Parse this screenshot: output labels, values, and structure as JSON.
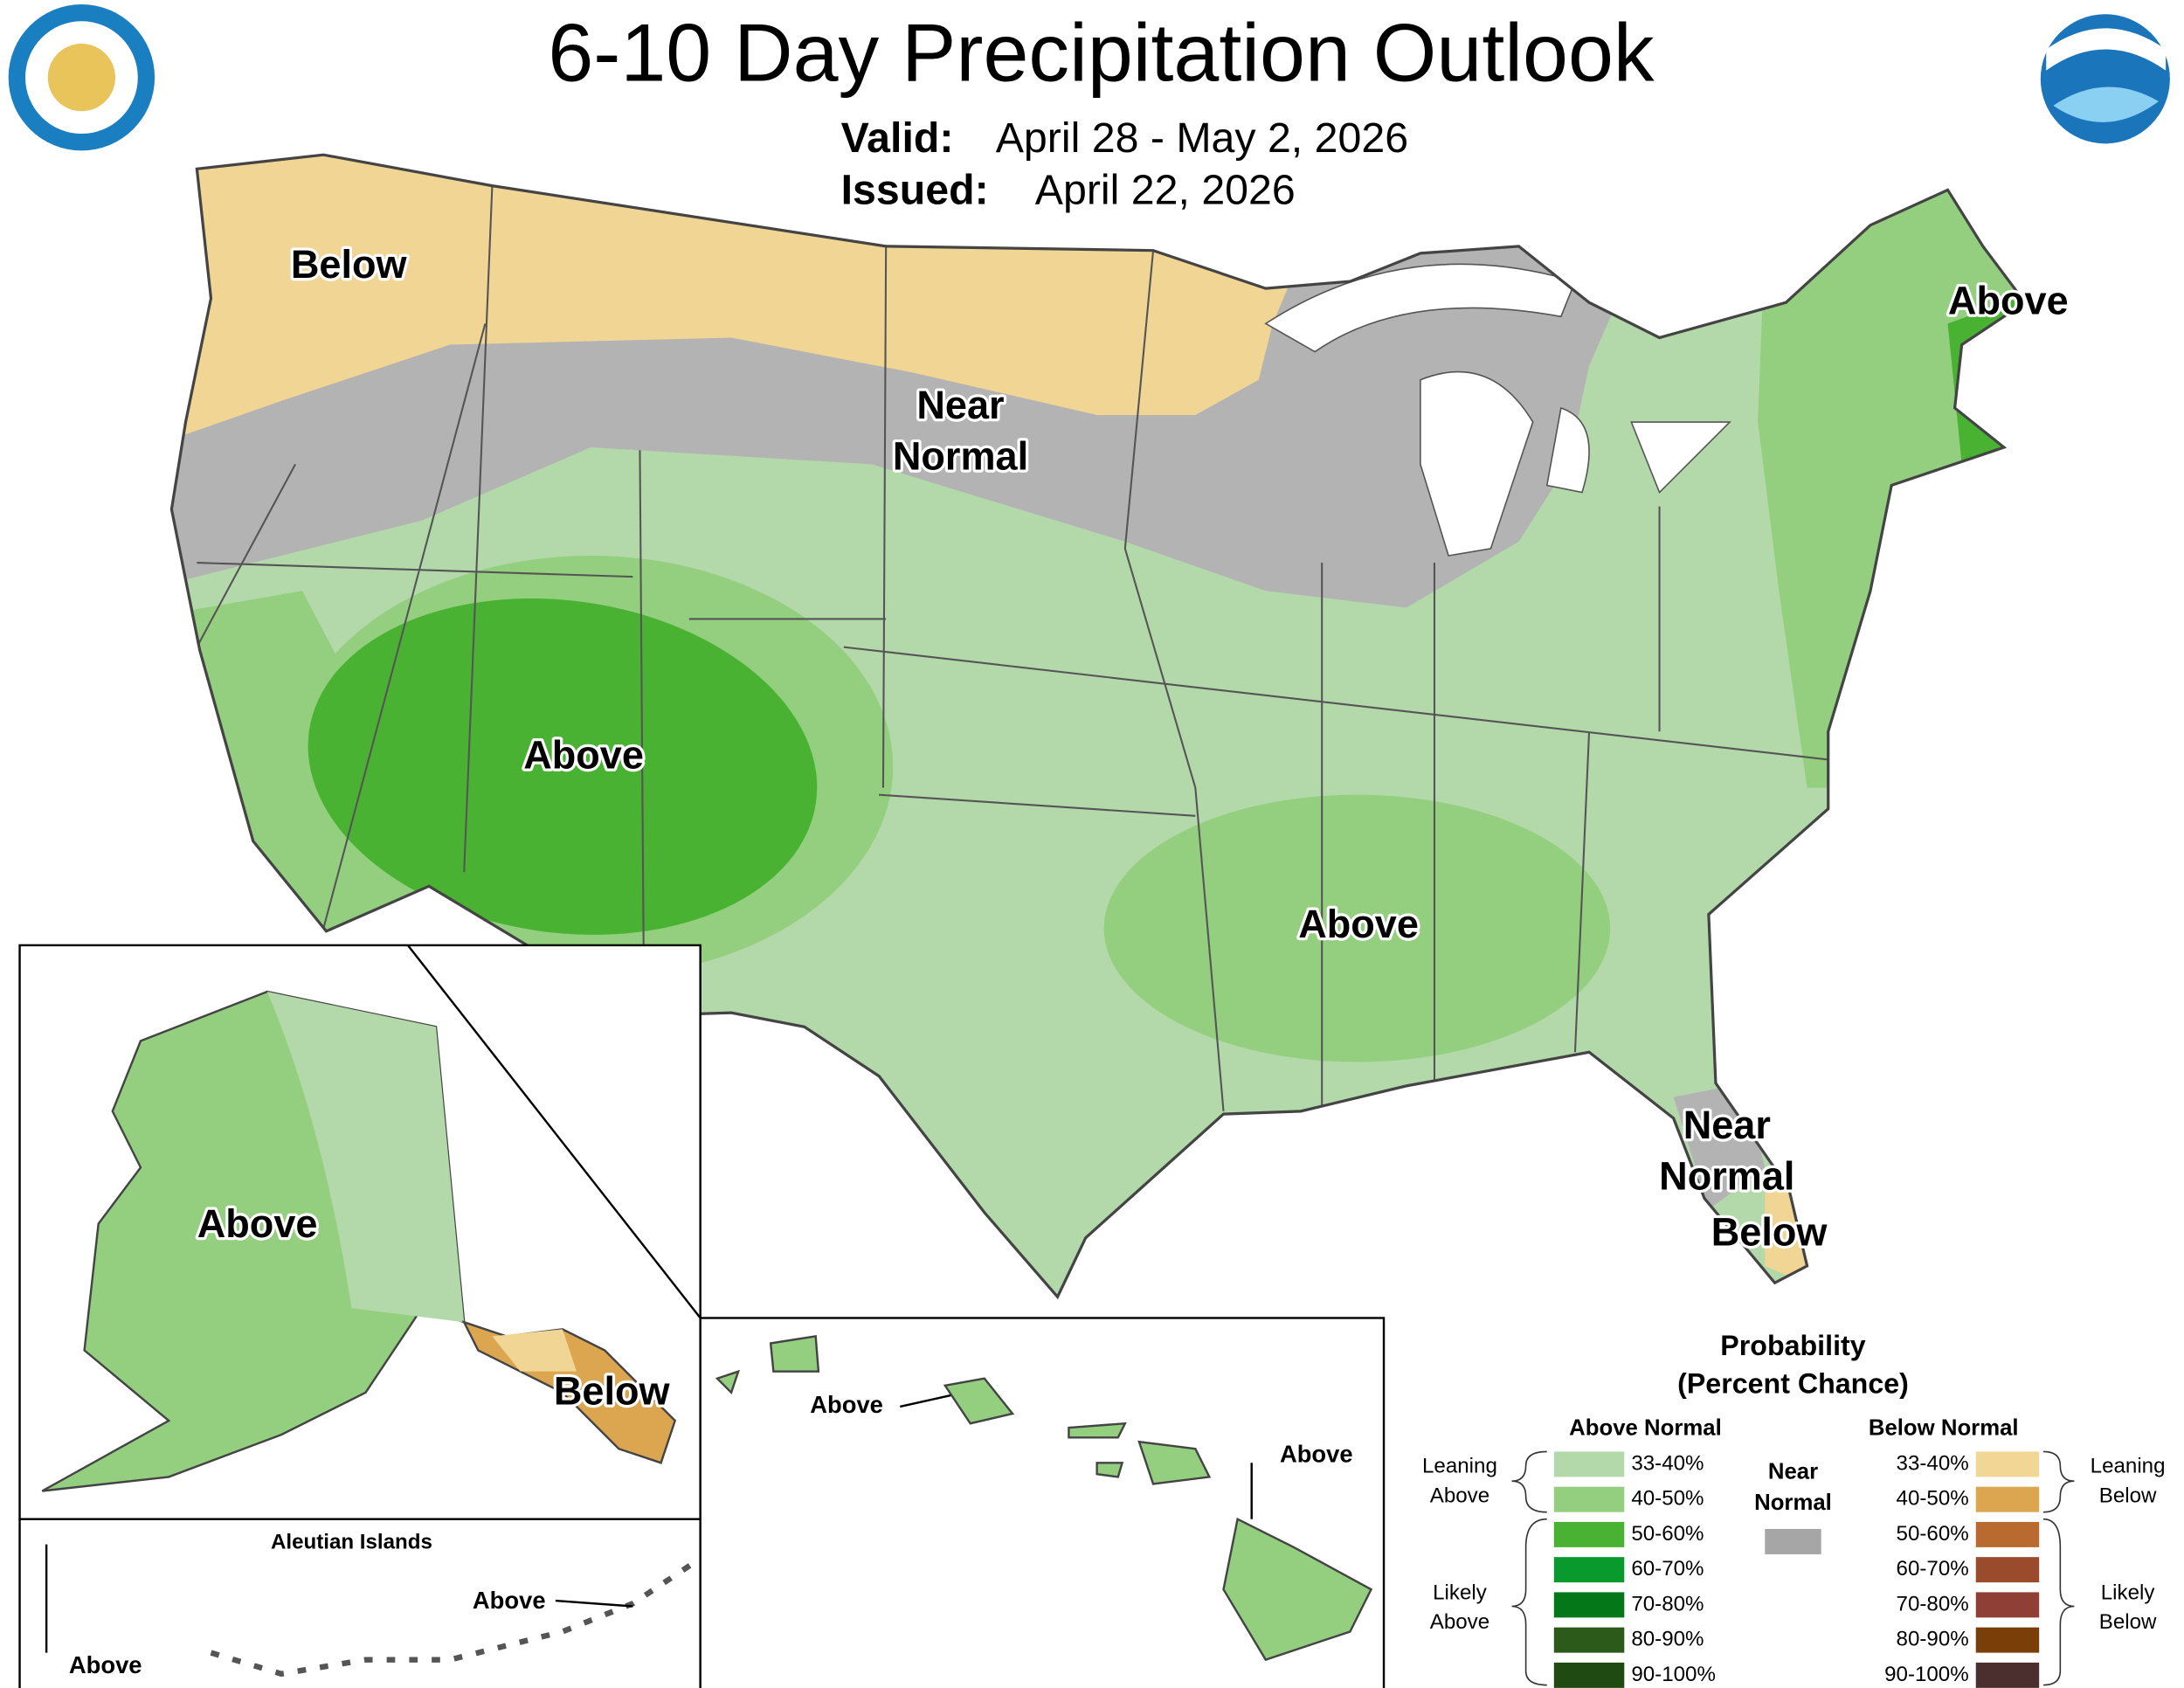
{
  "header": {
    "title": "6-10 Day Precipitation Outlook",
    "valid_label": "Valid:",
    "valid": "April 28 - May 2, 2026",
    "issued_label": "Issued:",
    "issued": "April 22, 2026"
  },
  "map_labels": [
    {
      "lines": [
        "Below"
      ]
    },
    {
      "lines": [
        "Near",
        "Normal"
      ]
    },
    {
      "lines": [
        "Above"
      ]
    },
    {
      "lines": [
        "Above"
      ]
    },
    {
      "lines": [
        "Above"
      ]
    },
    {
      "lines": [
        "Near",
        "Normal"
      ]
    },
    {
      "lines": [
        "Below"
      ]
    },
    {
      "lines": [
        "Above"
      ]
    },
    {
      "lines": [
        "Below"
      ]
    },
    {
      "lines": [
        "Above"
      ]
    },
    {
      "lines": [
        "Above"
      ]
    },
    {
      "lines": [
        "Above"
      ]
    },
    {
      "lines": [
        "Above"
      ]
    }
  ],
  "insets": {
    "aleutian_title": "Aleutian Islands"
  },
  "legend": {
    "title": "Probability",
    "subtitle": "(Percent Chance)",
    "above_header": "Above Normal",
    "below_header": "Below Normal",
    "near": {
      "lines": [
        "Near",
        "Normal"
      ],
      "color": "#a6a6a6"
    },
    "above": [
      {
        "label": "33-40%",
        "color": "#b3d9aa"
      },
      {
        "label": "40-50%",
        "color": "#93cf7e"
      },
      {
        "label": "50-60%",
        "color": "#4ab233"
      },
      {
        "label": "60-70%",
        "color": "#099a2e"
      },
      {
        "label": "70-80%",
        "color": "#047719"
      },
      {
        "label": "80-90%",
        "color": "#2b5a1a"
      },
      {
        "label": "90-100%",
        "color": "#1f4a12"
      }
    ],
    "below": [
      {
        "label": "33-40%",
        "color": "#f1d696"
      },
      {
        "label": "40-50%",
        "color": "#dba64f"
      },
      {
        "label": "50-60%",
        "color": "#b96a2f"
      },
      {
        "label": "60-70%",
        "color": "#9a4b2b"
      },
      {
        "label": "70-80%",
        "color": "#8f3f35"
      },
      {
        "label": "80-90%",
        "color": "#7a3f08"
      },
      {
        "label": "90-100%",
        "color": "#4b2f2f"
      }
    ],
    "brackets": [
      {
        "lines": [
          "Leaning",
          "Above"
        ]
      },
      {
        "lines": [
          "Likely",
          "Above"
        ]
      },
      {
        "lines": [
          "Leaning",
          "Below"
        ]
      },
      {
        "lines": [
          "Likely",
          "Below"
        ]
      }
    ]
  }
}
